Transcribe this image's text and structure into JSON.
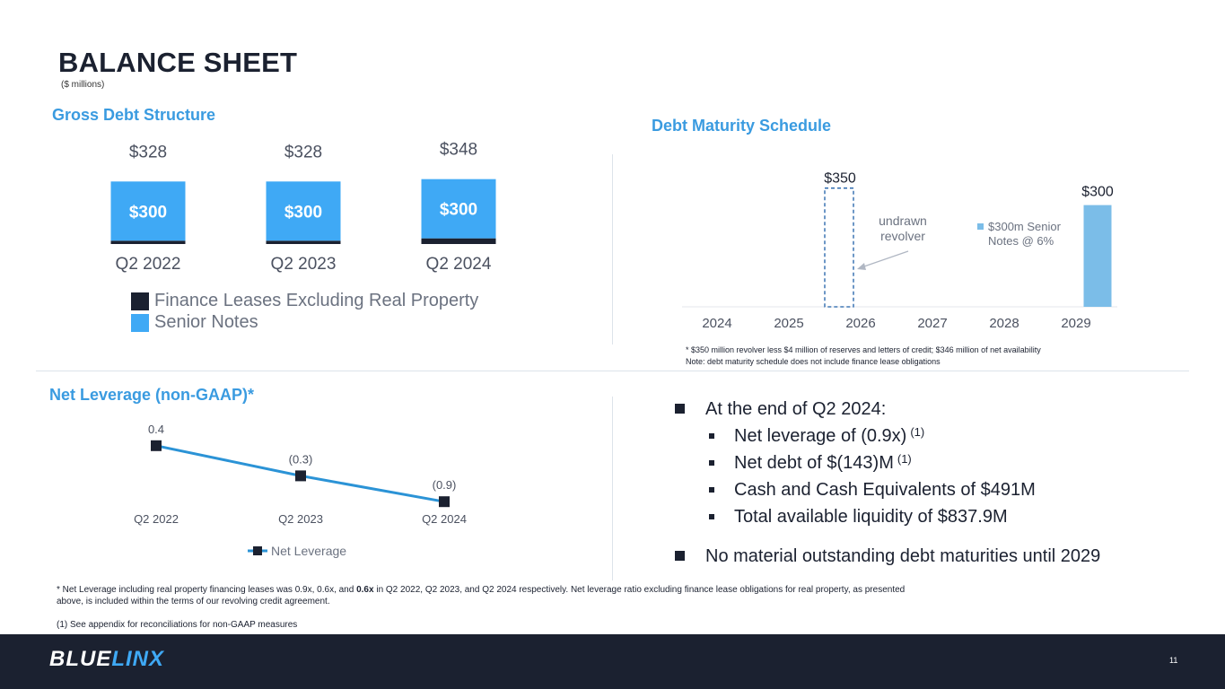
{
  "header": {
    "title": "BALANCE SHEET",
    "units": "($ millions)"
  },
  "gross_debt": {
    "title": "Gross Debt Structure",
    "legend": [
      {
        "label": "Finance Leases Excluding Real Property",
        "color": "#1b2130"
      },
      {
        "label": "Senior Notes",
        "color": "#3fa9f5"
      }
    ]
  },
  "maturity": {
    "title": "Debt Maturity Schedule",
    "annotation_line1": "undrawn",
    "annotation_line2": "revolver",
    "legend_line1": "$300m Senior",
    "legend_line2": "Notes @ 6%",
    "footnote1": "* $350 million revolver less $4 million of reserves and letters of credit; $346 million of net availability",
    "footnote2": "Note: debt maturity schedule does not include finance lease obligations"
  },
  "net_leverage": {
    "title": "Net Leverage (non-GAAP)*",
    "legend_label": "Net Leverage"
  },
  "bullets": {
    "main1": "At the end of Q2 2024:",
    "sub1": "Net leverage of (0.9x)",
    "sub1_sup": "(1)",
    "sub2": "Net debt of $(143)M",
    "sub2_sup": "(1)",
    "sub3": "Cash and Cash Equivalents of $491M",
    "sub4": "Total available liquidity of $837.9M",
    "main2": "No material outstanding debt maturities until 2029"
  },
  "footnotes": {
    "net_lev_pre": "* Net Leverage including real property financing leases was 0.9x, 0.6x, and ",
    "net_lev_bold": "0.6x",
    "net_lev_post": " in Q2 2022, Q2 2023, and Q2 2024 respectively.  Net leverage ratio excluding finance lease obligations for real property, as presented",
    "net_lev_line2": "above, is included within the terms of our revolving credit agreement.",
    "reconciliation": "(1)  See appendix for reconciliations for non-GAAP measures"
  },
  "footer": {
    "logo_part1": "BLUE",
    "logo_part2": "LINX",
    "page_number": "11"
  },
  "colors": {
    "navy": "#1b2130",
    "bright_blue": "#3fa9f5",
    "light_blue": "#7bbde8",
    "title_blue": "#3a9be0",
    "line_blue": "#2b93d6"
  },
  "chart_data": [
    {
      "type": "bar",
      "stacked": true,
      "title": "Gross Debt Structure",
      "categories": [
        "Q2 2022",
        "Q2 2023",
        "Q2 2024"
      ],
      "series": [
        {
          "name": "Senior Notes",
          "values": [
            300,
            300,
            300
          ],
          "labels": [
            "$300",
            "$300",
            "$300"
          ]
        },
        {
          "name": "Finance Leases Excluding Real Property",
          "values": [
            28,
            28,
            48
          ]
        }
      ],
      "total_labels": [
        "$328",
        "$328",
        "$348"
      ]
    },
    {
      "type": "bar",
      "title": "Debt Maturity Schedule",
      "categories": [
        "2024",
        "2025",
        "2026",
        "2027",
        "2028",
        "2029"
      ],
      "series": [
        {
          "name": "$300m Senior Notes @ 6%",
          "values": [
            0,
            0,
            0,
            0,
            0,
            300
          ]
        },
        {
          "name": "undrawn revolver",
          "values": [
            0,
            0,
            350,
            0,
            0,
            0
          ]
        }
      ],
      "value_labels": [
        "$350",
        "$300"
      ]
    },
    {
      "type": "line",
      "title": "Net Leverage (non-GAAP)*",
      "categories": [
        "Q2 2022",
        "Q2 2023",
        "Q2 2024"
      ],
      "series": [
        {
          "name": "Net Leverage",
          "values": [
            0.4,
            -0.3,
            -0.9
          ]
        }
      ],
      "value_labels": [
        "0.4",
        "(0.3)",
        "(0.9)"
      ]
    }
  ]
}
